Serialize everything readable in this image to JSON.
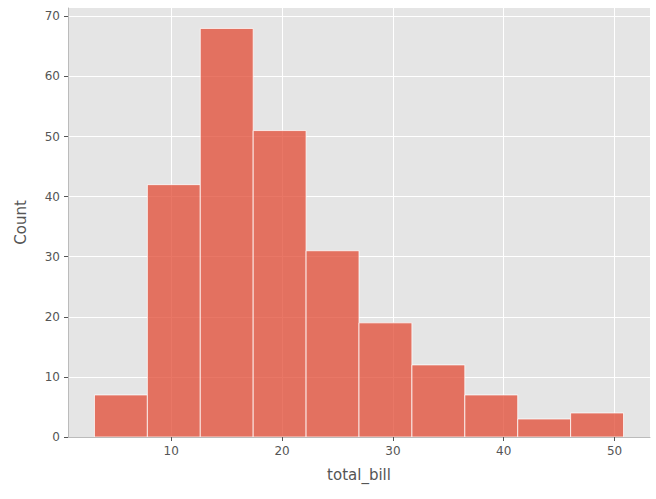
{
  "chart_data": {
    "type": "histogram",
    "xlabel": "total_bill",
    "ylabel": "Count",
    "bins": [
      3.07,
      7.844,
      12.618,
      17.392,
      22.166,
      26.94,
      31.714,
      36.488,
      41.262,
      46.036,
      50.81
    ],
    "values": [
      7,
      42,
      68,
      51,
      31,
      19,
      12,
      7,
      3,
      4
    ],
    "color": "#E24A33",
    "xlim": [
      0.683,
      53.197
    ],
    "xticks": [
      10,
      20,
      30,
      40,
      50
    ],
    "ylim": [
      0,
      71.4
    ],
    "yticks": [
      0,
      10,
      20,
      30,
      40,
      50,
      60,
      70
    ],
    "grid": true
  }
}
